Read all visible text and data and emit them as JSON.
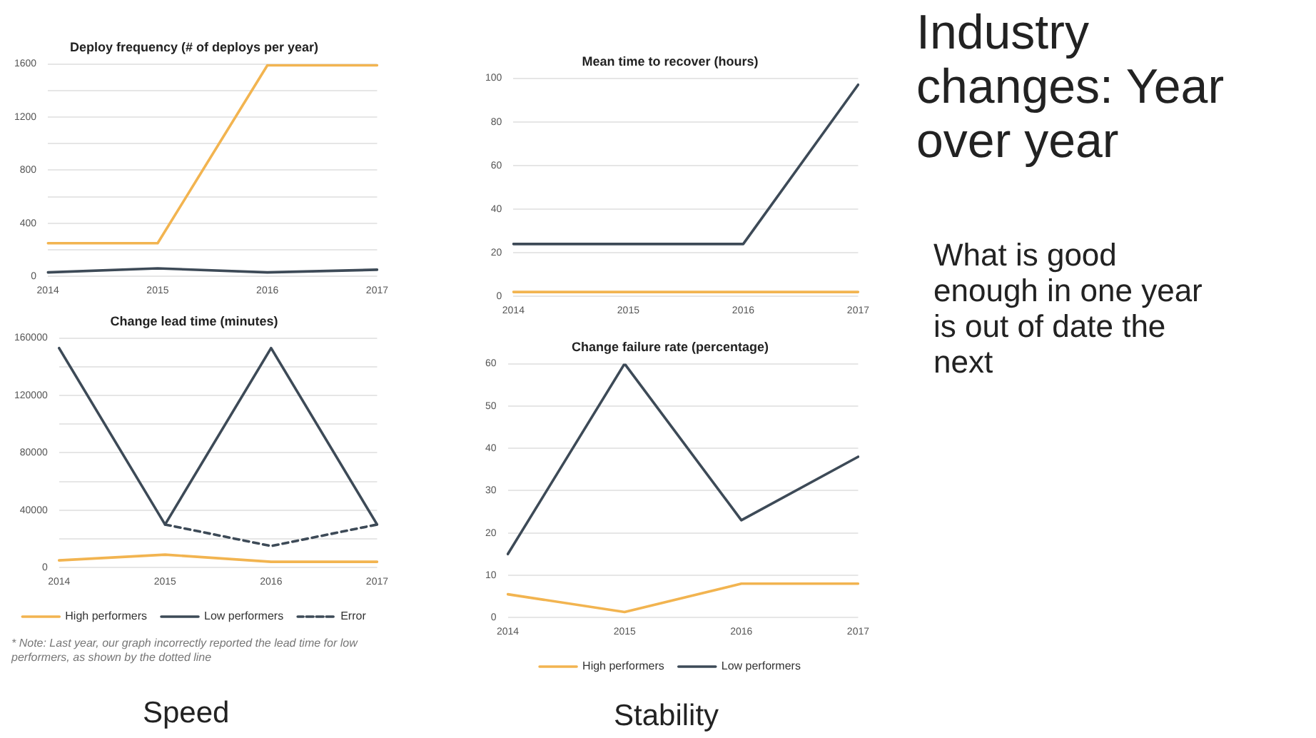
{
  "chart_data": [
    {
      "type": "line",
      "title": "Deploy frequency (# of deploys per year)",
      "categories": [
        "2014",
        "2015",
        "2016",
        "2017"
      ],
      "series": [
        {
          "color": "#f2b450",
          "values": [
            250,
            250,
            1590,
            1590
          ]
        },
        {
          "color": "#3d4a57",
          "values": [
            30,
            60,
            30,
            50
          ]
        }
      ],
      "ylim": [
        0,
        1600
      ],
      "yticks": [
        0,
        {
          "value": 200,
          "label": null
        },
        400,
        {
          "value": 600,
          "label": null
        },
        800,
        {
          "value": 1000,
          "label": null
        },
        1200,
        {
          "value": 1400,
          "label": null
        },
        1600
      ],
      "grid": "y",
      "legend": false,
      "marker": "none",
      "line_style": "solid"
    },
    {
      "type": "line",
      "title": "Change lead time (minutes)",
      "categories": [
        "2014",
        "2015",
        "2016",
        "2017"
      ],
      "series": [
        {
          "name": "High performers",
          "color": "#f2b450",
          "values": [
            5000,
            9000,
            4000,
            4000
          ]
        },
        {
          "name": "Low performers",
          "color": "#3d4a57",
          "values": [
            153000,
            30000,
            153000,
            30000
          ]
        },
        {
          "name": "Error",
          "color": "#3d4a57",
          "line_style": "dashed",
          "values": [
            null,
            30000,
            15000,
            30000
          ]
        }
      ],
      "ylim": [
        0,
        160000
      ],
      "yticks": [
        0,
        {
          "value": 20000,
          "label": null
        },
        40000,
        {
          "value": 60000,
          "label": null
        },
        80000,
        {
          "value": 100000,
          "label": null
        },
        120000,
        {
          "value": 140000,
          "label": null
        },
        160000
      ],
      "grid": "y",
      "legend": "bottom",
      "marker": "none",
      "line_style": "solid",
      "annotations": [
        "* Note: Last year, our graph incorrectly reported the lead time for low performers, as shown by the dotted line",
        "Speed"
      ]
    },
    {
      "type": "line",
      "title": "Mean time to recover (hours)",
      "categories": [
        "2014",
        "2015",
        "2016",
        "2017"
      ],
      "series": [
        {
          "color": "#f2b450",
          "values": [
            2,
            2,
            2,
            2
          ]
        },
        {
          "color": "#3d4a57",
          "values": [
            24,
            24,
            24,
            97
          ]
        }
      ],
      "ylim": [
        0,
        100
      ],
      "yticks": [
        0,
        20,
        40,
        60,
        80,
        100
      ],
      "grid": "y",
      "legend": false,
      "marker": "none",
      "line_style": "solid"
    },
    {
      "type": "line",
      "title": "Change failure rate (percentage)",
      "categories": [
        "2014",
        "2015",
        "2016",
        "2017"
      ],
      "series": [
        {
          "name": "High performers",
          "color": "#f2b450",
          "values": [
            5.5,
            1.3,
            8,
            8
          ]
        },
        {
          "name": "Low performers",
          "color": "#3d4a57",
          "values": [
            15,
            60,
            23,
            38
          ]
        }
      ],
      "ylim": [
        0,
        60
      ],
      "yticks": [
        0,
        10,
        20,
        30,
        40,
        50,
        60
      ],
      "grid": "y",
      "legend": "bottom",
      "marker": "none",
      "line_style": "solid",
      "annotations": [
        "Stability"
      ]
    },
    {
      "type": "other",
      "title": "Industry changes: Year over year",
      "annotations": [
        "What is good enough in one year is out of date the next"
      ]
    }
  ]
}
